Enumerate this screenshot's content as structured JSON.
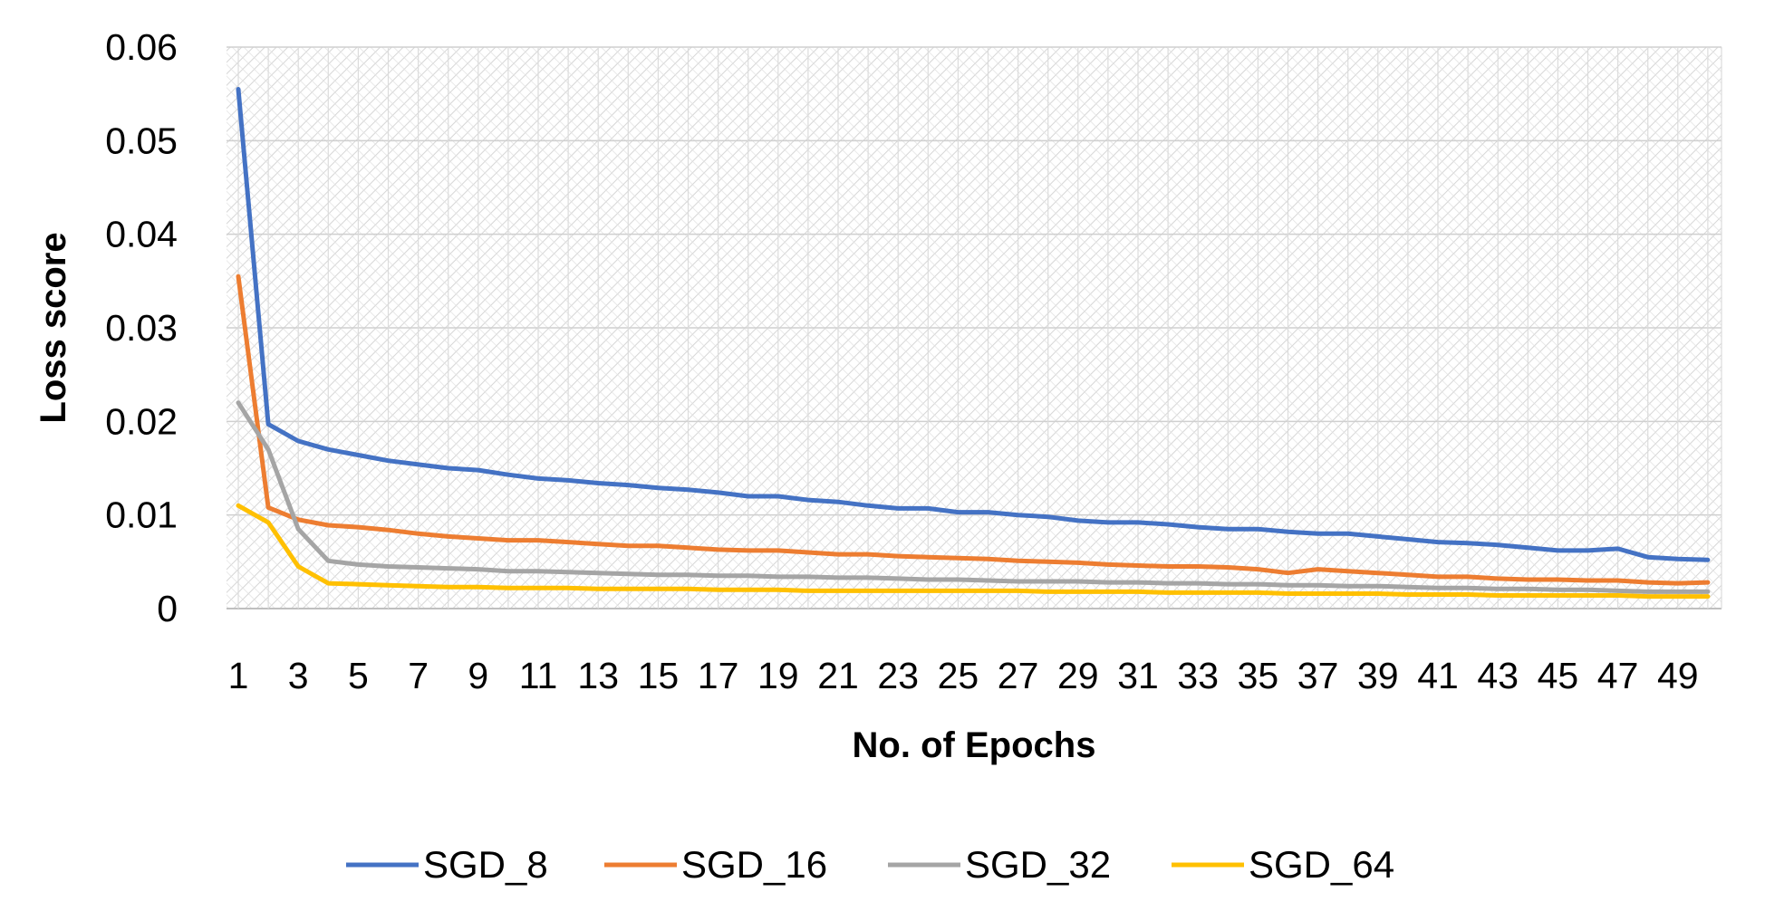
{
  "chart_data": {
    "type": "line",
    "title": "",
    "xlabel": "No. of Epochs",
    "ylabel": "Loss score",
    "ylim": [
      0,
      0.06
    ],
    "xlim": [
      1,
      50
    ],
    "y_ticks": [
      "0",
      "0.01",
      "0.02",
      "0.03",
      "0.04",
      "0.05",
      "0.06"
    ],
    "x_ticks": [
      "1",
      "3",
      "5",
      "7",
      "9",
      "11",
      "13",
      "15",
      "17",
      "19",
      "21",
      "23",
      "25",
      "27",
      "29",
      "31",
      "33",
      "35",
      "37",
      "39",
      "41",
      "43",
      "45",
      "47",
      "49"
    ],
    "grid": true,
    "legend_position": "bottom",
    "x": [
      1,
      2,
      3,
      4,
      5,
      6,
      7,
      8,
      9,
      10,
      11,
      12,
      13,
      14,
      15,
      16,
      17,
      18,
      19,
      20,
      21,
      22,
      23,
      24,
      25,
      26,
      27,
      28,
      29,
      30,
      31,
      32,
      33,
      34,
      35,
      36,
      37,
      38,
      39,
      40,
      41,
      42,
      43,
      44,
      45,
      46,
      47,
      48,
      49,
      50
    ],
    "series": [
      {
        "name": "SGD_8",
        "color": "#4472C4",
        "values": [
          0.0555,
          0.0197,
          0.0179,
          0.017,
          0.0164,
          0.0158,
          0.0154,
          0.015,
          0.0148,
          0.0143,
          0.0139,
          0.0137,
          0.0134,
          0.0132,
          0.0129,
          0.0127,
          0.0124,
          0.012,
          0.012,
          0.0116,
          0.0114,
          0.011,
          0.0107,
          0.0107,
          0.0103,
          0.0103,
          0.01,
          0.0098,
          0.0094,
          0.0092,
          0.0092,
          0.009,
          0.0087,
          0.0085,
          0.0085,
          0.0082,
          0.008,
          0.008,
          0.0077,
          0.0074,
          0.0071,
          0.007,
          0.0068,
          0.0065,
          0.0062,
          0.0062,
          0.0064,
          0.0055,
          0.0053,
          0.0052
        ]
      },
      {
        "name": "SGD_16",
        "color": "#ED7D31",
        "values": [
          0.0355,
          0.0108,
          0.0095,
          0.0089,
          0.0087,
          0.0084,
          0.008,
          0.0077,
          0.0075,
          0.0073,
          0.0073,
          0.0071,
          0.0069,
          0.0067,
          0.0067,
          0.0065,
          0.0063,
          0.0062,
          0.0062,
          0.006,
          0.0058,
          0.0058,
          0.0056,
          0.0055,
          0.0054,
          0.0053,
          0.0051,
          0.005,
          0.0049,
          0.0047,
          0.0046,
          0.0045,
          0.0045,
          0.0044,
          0.0042,
          0.0038,
          0.0042,
          0.004,
          0.0038,
          0.0036,
          0.0034,
          0.0034,
          0.0032,
          0.0031,
          0.0031,
          0.003,
          0.003,
          0.0028,
          0.0027,
          0.0028
        ]
      },
      {
        "name": "SGD_32",
        "color": "#A5A5A5",
        "values": [
          0.022,
          0.017,
          0.0085,
          0.0051,
          0.0047,
          0.0045,
          0.0044,
          0.0043,
          0.0042,
          0.004,
          0.004,
          0.0039,
          0.0038,
          0.0037,
          0.0036,
          0.0036,
          0.0035,
          0.0035,
          0.0034,
          0.0034,
          0.0033,
          0.0033,
          0.0032,
          0.0031,
          0.0031,
          0.003,
          0.0029,
          0.0029,
          0.0029,
          0.0028,
          0.0028,
          0.0027,
          0.0027,
          0.0026,
          0.0026,
          0.0025,
          0.0025,
          0.0024,
          0.0024,
          0.0023,
          0.0022,
          0.0022,
          0.0021,
          0.0021,
          0.002,
          0.002,
          0.0019,
          0.0018,
          0.0018,
          0.0018
        ]
      },
      {
        "name": "SGD_64",
        "color": "#FFC000",
        "values": [
          0.011,
          0.0092,
          0.0045,
          0.0027,
          0.0026,
          0.0025,
          0.0024,
          0.0023,
          0.0023,
          0.0022,
          0.0022,
          0.0022,
          0.0021,
          0.0021,
          0.0021,
          0.0021,
          0.002,
          0.002,
          0.002,
          0.0019,
          0.0019,
          0.0019,
          0.0019,
          0.0019,
          0.0019,
          0.0019,
          0.0019,
          0.0018,
          0.0018,
          0.0018,
          0.0018,
          0.0017,
          0.0017,
          0.0017,
          0.0017,
          0.0016,
          0.0016,
          0.0016,
          0.0016,
          0.0015,
          0.0015,
          0.0015,
          0.0014,
          0.0014,
          0.0014,
          0.0014,
          0.0014,
          0.0013,
          0.0013,
          0.0013
        ]
      }
    ]
  }
}
